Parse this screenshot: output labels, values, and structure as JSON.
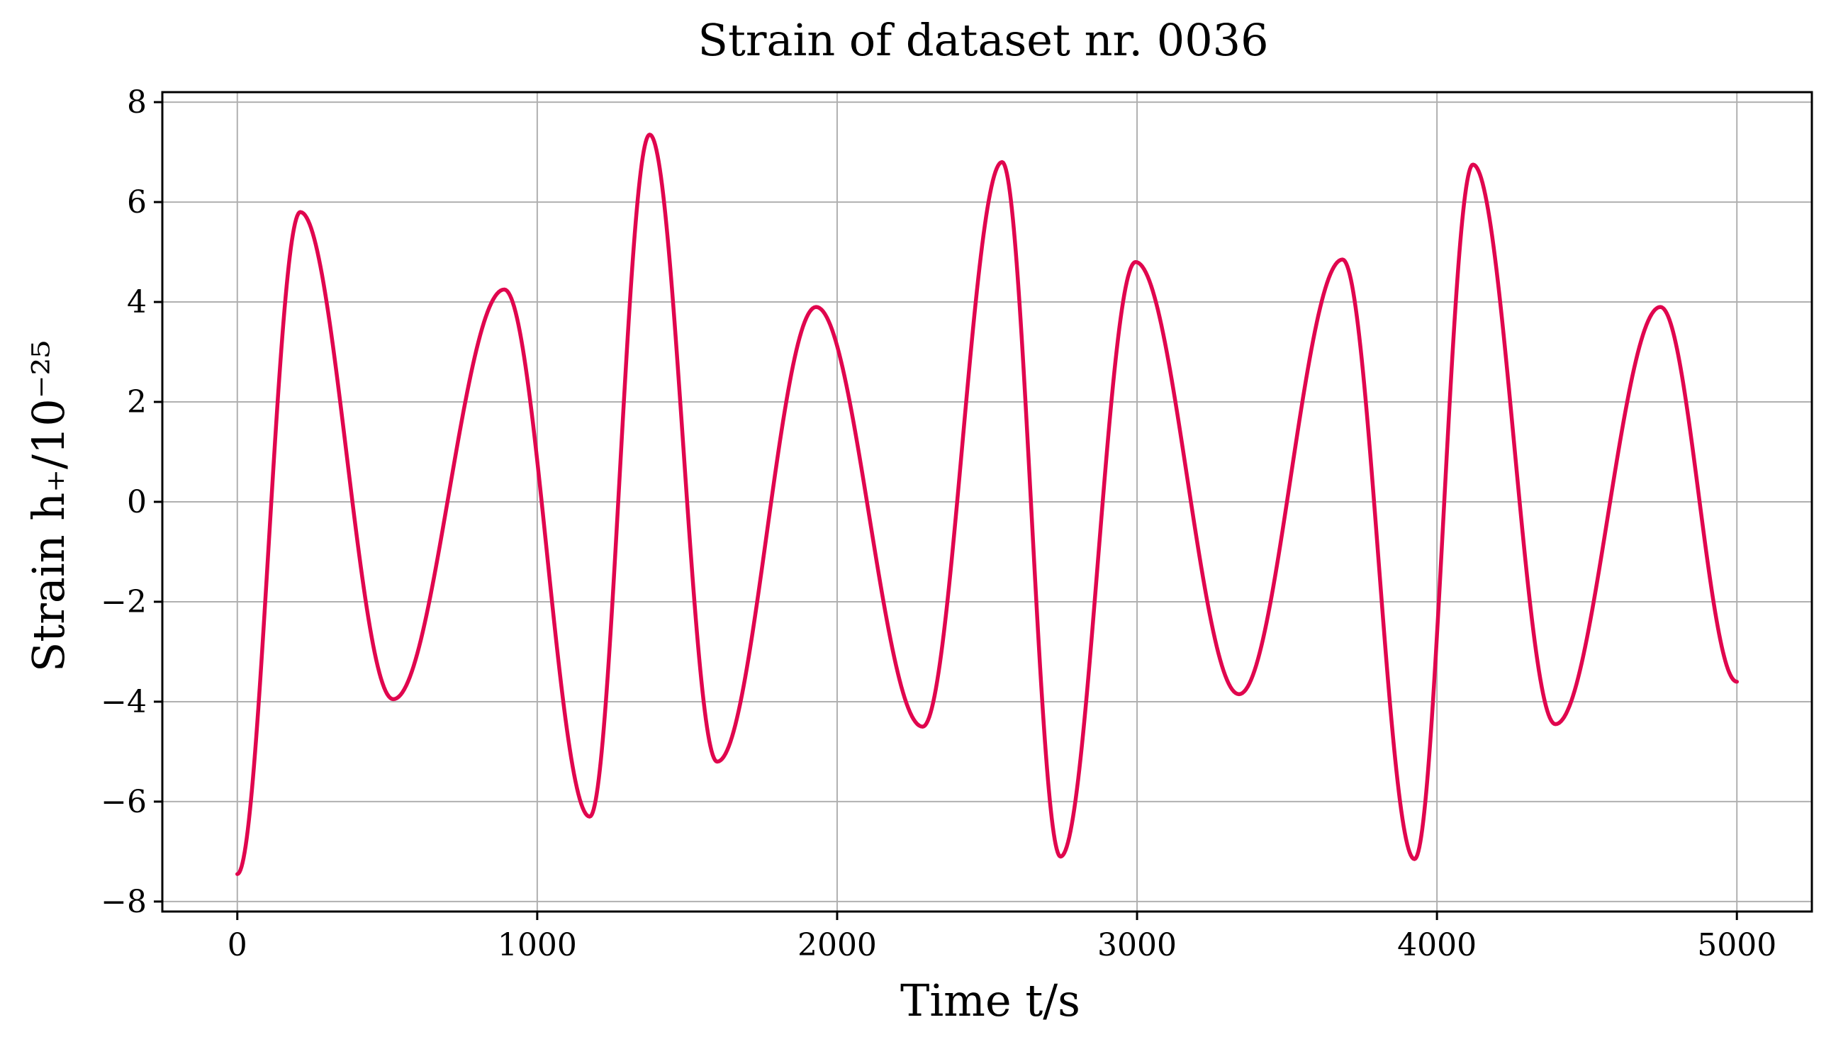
{
  "chart_data": {
    "type": "line",
    "title": "Strain of dataset nr. 0036",
    "xlabel": "Time t/s",
    "ylabel": "Strain h₊/10⁻²⁵",
    "xlim": [
      -250,
      5250
    ],
    "ylim": [
      -8.2,
      8.2
    ],
    "x_ticks": [
      0,
      1000,
      2000,
      3000,
      4000,
      5000
    ],
    "x_tick_labels": [
      "0",
      "1000",
      "2000",
      "3000",
      "4000",
      "5000"
    ],
    "y_ticks": [
      -8,
      -6,
      -4,
      -2,
      0,
      2,
      4,
      6,
      8
    ],
    "y_tick_labels": [
      "−8",
      "−6",
      "−4",
      "−2",
      "0",
      "2",
      "4",
      "6",
      "8"
    ],
    "grid": true,
    "series": [
      {
        "color": "#e0064e",
        "extrema": [
          [
            0,
            -7.45
          ],
          [
            210,
            5.8
          ],
          [
            520,
            -3.95
          ],
          [
            890,
            4.25
          ],
          [
            1175,
            -6.3
          ],
          [
            1375,
            7.35
          ],
          [
            1600,
            -5.2
          ],
          [
            1930,
            3.9
          ],
          [
            2285,
            -4.5
          ],
          [
            2550,
            6.8
          ],
          [
            2745,
            -7.1
          ],
          [
            2995,
            4.8
          ],
          [
            3340,
            -3.85
          ],
          [
            3685,
            4.85
          ],
          [
            3925,
            -7.15
          ],
          [
            4120,
            6.75
          ],
          [
            4395,
            -4.45
          ],
          [
            4745,
            3.9
          ],
          [
            5000,
            -3.6
          ]
        ]
      }
    ]
  }
}
